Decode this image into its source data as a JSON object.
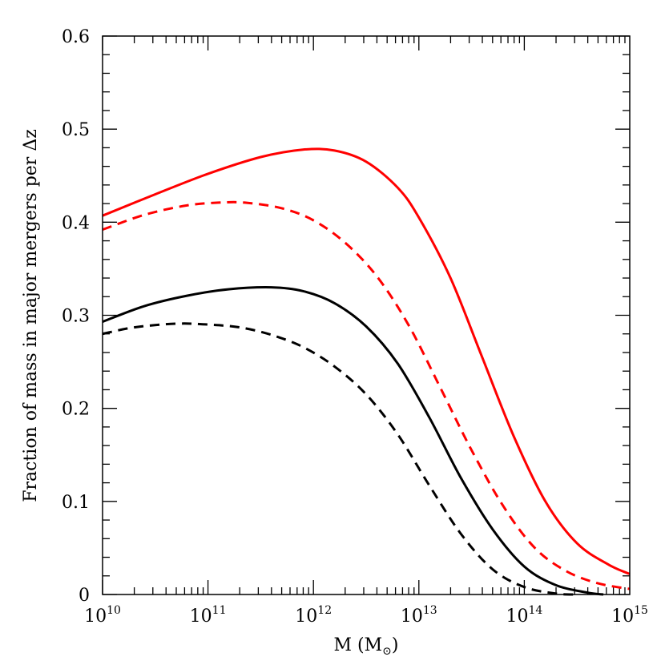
{
  "chart_data": {
    "type": "line",
    "xlabel": "M (M⊙)",
    "xlabel_main": "M (M",
    "xlabel_sub": "⊙",
    "xlabel_close": ")",
    "ylabel": "Fraction of mass in major mergers per Δz",
    "xscale": "log",
    "xlim": [
      10000000000.0,
      1000000000000000.0
    ],
    "ylim": [
      0,
      0.6
    ],
    "x_tick_exponents": [
      10,
      11,
      12,
      13,
      14,
      15
    ],
    "x_tick_base": "10",
    "y_ticks": [
      "0",
      "0.1",
      "0.2",
      "0.3",
      "0.4",
      "0.5",
      "0.6"
    ],
    "grid": false,
    "series": [
      {
        "color": "#ff0000",
        "style": "solid",
        "x_log10": [
          10.0,
          10.5,
          11.0,
          11.5,
          11.9,
          12.2,
          12.5,
          12.8,
          13.0,
          13.3,
          13.6,
          13.9,
          14.2,
          14.5,
          14.8,
          15.0
        ],
        "y": [
          0.407,
          0.43,
          0.452,
          0.47,
          0.478,
          0.477,
          0.465,
          0.437,
          0.405,
          0.34,
          0.255,
          0.17,
          0.1,
          0.055,
          0.032,
          0.022
        ]
      },
      {
        "color": "#ff0000",
        "style": "dashed",
        "x_log10": [
          10.0,
          10.4,
          10.8,
          11.1,
          11.35,
          11.7,
          12.0,
          12.3,
          12.6,
          12.9,
          13.2,
          13.5,
          13.8,
          14.1,
          14.4,
          14.7,
          15.0
        ],
        "y": [
          0.392,
          0.408,
          0.418,
          0.421,
          0.421,
          0.415,
          0.402,
          0.378,
          0.342,
          0.29,
          0.223,
          0.155,
          0.095,
          0.05,
          0.025,
          0.012,
          0.006
        ]
      },
      {
        "color": "#000000",
        "style": "solid",
        "x_log10": [
          10.0,
          10.4,
          10.8,
          11.2,
          11.6,
          11.9,
          12.2,
          12.5,
          12.8,
          13.1,
          13.4,
          13.7,
          14.0,
          14.3,
          14.6,
          14.75
        ],
        "y": [
          0.293,
          0.31,
          0.321,
          0.328,
          0.33,
          0.326,
          0.313,
          0.288,
          0.248,
          0.19,
          0.125,
          0.07,
          0.03,
          0.01,
          0.002,
          0.0
        ]
      },
      {
        "color": "#000000",
        "style": "dashed",
        "x_log10": [
          10.0,
          10.3,
          10.7,
          11.0,
          11.3,
          11.6,
          11.9,
          12.2,
          12.5,
          12.8,
          13.1,
          13.4,
          13.7,
          14.0,
          14.3,
          14.5
        ],
        "y": [
          0.28,
          0.287,
          0.291,
          0.29,
          0.287,
          0.279,
          0.266,
          0.245,
          0.215,
          0.172,
          0.117,
          0.065,
          0.027,
          0.008,
          0.001,
          0.0
        ]
      }
    ]
  }
}
